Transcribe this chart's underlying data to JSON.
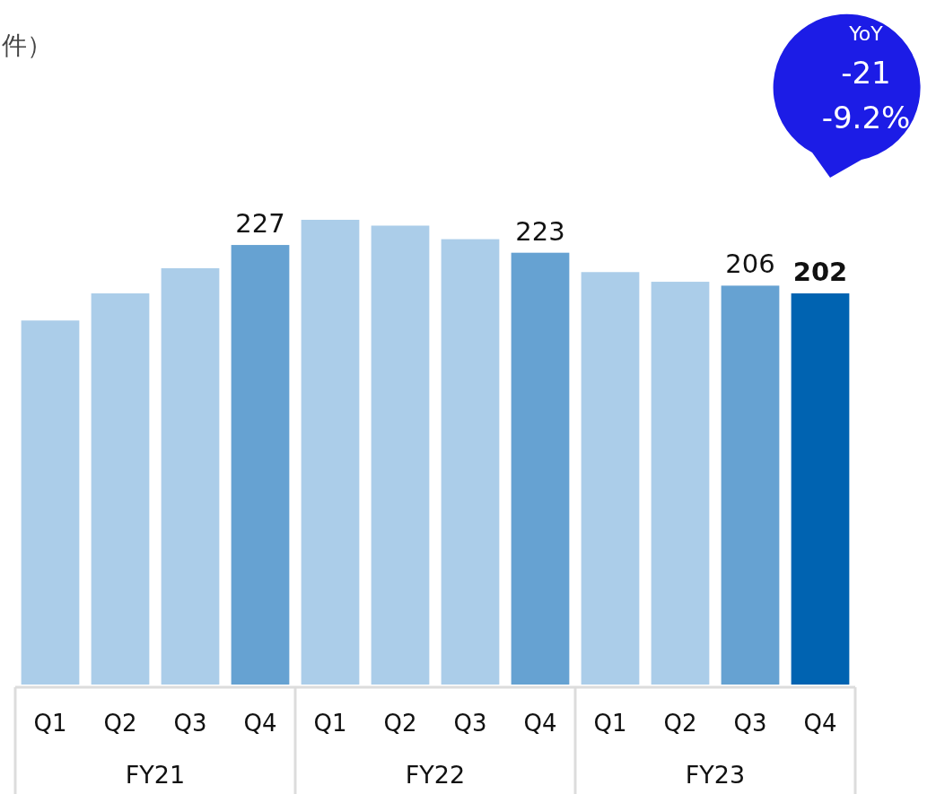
{
  "chart_data": {
    "type": "bar",
    "categories": [
      "Q1",
      "Q2",
      "Q3",
      "Q4",
      "Q1",
      "Q2",
      "Q3",
      "Q4",
      "Q1",
      "Q2",
      "Q3",
      "Q4"
    ],
    "values": [
      188,
      202,
      215,
      227,
      240,
      237,
      230,
      223,
      213,
      208,
      206,
      202
    ],
    "colors": [
      "#abcde9",
      "#abcde9",
      "#abcde9",
      "#66a2d2",
      "#abcde9",
      "#abcde9",
      "#abcde9",
      "#66a2d2",
      "#abcde9",
      "#abcde9",
      "#66a2d2",
      "#0063b1"
    ],
    "value_labels": [
      null,
      null,
      null,
      "227",
      null,
      null,
      null,
      "223",
      null,
      null,
      "206",
      "202"
    ],
    "annotations": [
      "件）",
      "FY21",
      "FY22",
      "FY23",
      "YoY",
      "-21",
      "-9.2%"
    ]
  }
}
